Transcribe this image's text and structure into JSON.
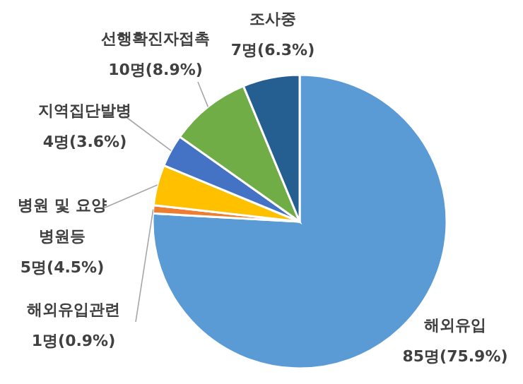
{
  "chart_data": {
    "type": "pie",
    "categories": [
      "해외유입",
      "해외유입관련",
      "병원 및 요양병원등",
      "지역집단발병",
      "선행확진자접촉",
      "조사중"
    ],
    "values": [
      85,
      1,
      5,
      4,
      10,
      7
    ],
    "value_labels": [
      "85명(75.9%)",
      "1명(0.9%)",
      "5명(4.5%)",
      "4명(3.6%)",
      "10명(8.9%)",
      "7명(6.3%)"
    ],
    "colors": [
      "#5b9bd5",
      "#ed7d31",
      "#ffc000",
      "#4472c4",
      "#70ad47",
      "#255e91"
    ]
  }
}
